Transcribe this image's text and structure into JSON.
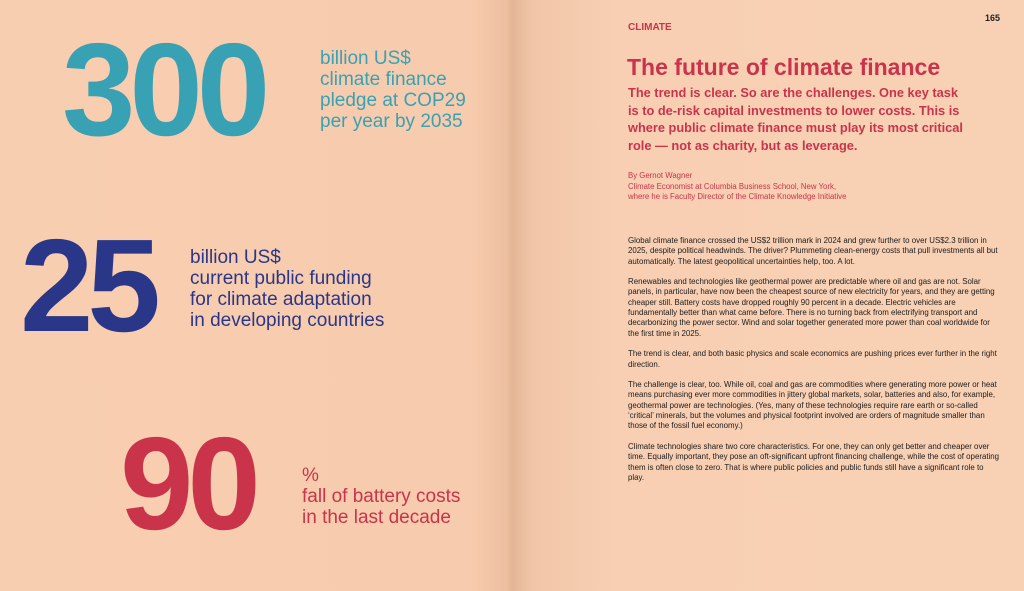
{
  "page_number": 165,
  "stats": [
    {
      "number": 300,
      "label": [
        "billion US$",
        "climate finance",
        "pledge at COP29",
        "per year by 2035"
      ]
    },
    {
      "number": 25,
      "label": [
        "billion US$",
        "current public funding",
        "for climate adaptation",
        "in developing countries"
      ]
    },
    {
      "number": 90,
      "label": [
        "%",
        "fall of battery costs",
        "in the last decade"
      ]
    }
  ],
  "article": {
    "section": "CLIMATE",
    "title": "The future of climate finance",
    "lede": [
      "The trend is clear. So are the challenges. One key task",
      "is to de-risk capital investments to lower costs. This is",
      "where public climate finance must play its most critical",
      "role — not as charity, but as leverage."
    ],
    "byline": [
      "By Gernot Wagner",
      "Climate Economist at Columbia Business School, New York,",
      "where he is Faculty Director of the Climate Knowledge Initiative"
    ],
    "paragraphs": [
      "Global climate finance crossed the US$2 trillion mark in 2024 and grew further to over US$2.3 trillion in 2025, despite political headwinds. The driver? Plummeting clean-energy costs that pull investments all but automatically. The latest geopolitical uncertainties help, too. A lot.",
      "Renewables and technologies like geothermal power are predictable where oil and gas are not. Solar panels, in particular, have now been the cheapest source of new electricity for years, and they are getting cheaper still. Battery costs have dropped roughly 90 percent in a decade. Electric vehicles are fundamentally better than what came before. There is no turning back from electrifying transport and decarbonizing the power sector. Wind and solar together generated more power than coal worldwide for the first time in 2025.",
      "The trend is clear, and both basic physics and scale economics are pushing prices ever further in the right direction.",
      "The challenge is clear, too. While oil, coal and gas are commodities where generating more power or heat means purchasing ever more commodities in jittery global markets, solar, batteries and also, for example, geothermal power are technologies. (Yes, many of these technologies require rare earth or so-called ‘critical’ minerals, but the volumes and physical footprint involved are orders of magnitude smaller than those of the fossil fuel economy.)",
      "Climate technologies share two core characteristics. For one, they can only get better and cheaper over time. Equally important, they pose an oft-significant upfront financing challenge, while the cost of operating them is often close to zero. That is where public policies and public funds still have a significant role to play."
    ]
  }
}
